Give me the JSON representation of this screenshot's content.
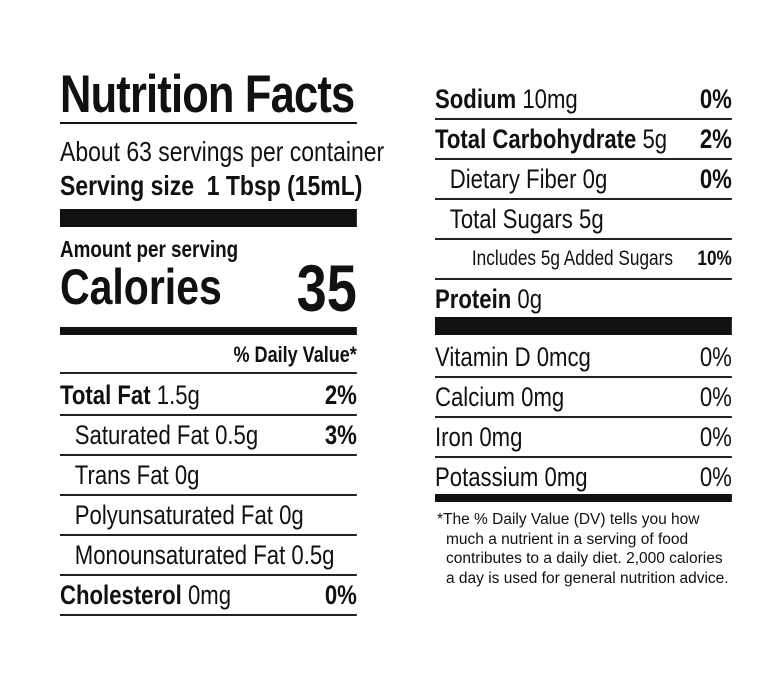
{
  "title": "Nutrition Facts",
  "servings": "About 63 servings per container",
  "serving_size": {
    "label": "Serving size",
    "value": "1 Tbsp (15mL)"
  },
  "amount_per_serving": "Amount per serving",
  "calories": {
    "label": "Calories",
    "value": "35"
  },
  "dv_header": "% Daily Value*",
  "left_rows": [
    {
      "name": "Total Fat",
      "amount": "1.5g",
      "dv": "2%",
      "bold": true,
      "indent": 0
    },
    {
      "name": "Saturated Fat",
      "amount": "0.5g",
      "dv": "3%",
      "bold": false,
      "indent": 1
    },
    {
      "name": "Trans Fat",
      "amount": "0g",
      "bold": false,
      "indent": 1
    },
    {
      "name": "Polyunsaturated Fat",
      "amount": "0g",
      "bold": false,
      "indent": 1
    },
    {
      "name": "Monounsaturated Fat",
      "amount": "0.5g",
      "bold": false,
      "indent": 1
    },
    {
      "name": "Cholesterol",
      "amount": "0mg",
      "dv": "0%",
      "bold": true,
      "indent": 0
    }
  ],
  "right_rows": [
    {
      "name": "Sodium",
      "amount": "10mg",
      "dv": "0%",
      "bold": true,
      "indent": 0
    },
    {
      "name": "Total Carbohydrate",
      "amount": "5g",
      "dv": "2%",
      "bold": true,
      "indent": 0
    },
    {
      "name": "Dietary Fiber",
      "amount": "0g",
      "dv": "0%",
      "bold": false,
      "indent": 1
    },
    {
      "name": "Total Sugars",
      "amount": "5g",
      "bold": false,
      "indent": 1
    },
    {
      "name": "Includes 5g Added Sugars",
      "dv": "10%",
      "bold": false,
      "indent": 2
    },
    {
      "name": "Protein",
      "amount": "0g",
      "bold": true,
      "indent": 0
    }
  ],
  "vitamin_rows": [
    {
      "name": "Vitamin D",
      "amount": "0mcg",
      "dv": "0%"
    },
    {
      "name": "Calcium",
      "amount": "0mg",
      "dv": "0%"
    },
    {
      "name": "Iron",
      "amount": "0mg",
      "dv": "0%"
    },
    {
      "name": "Potassium",
      "amount": "0mg",
      "dv": "0%"
    }
  ],
  "footnote": "*The % Daily Value (DV) tells you how much a nutrient in a serving of food contributes to a daily diet. 2,000 calories a day is used for general nutrition advice."
}
